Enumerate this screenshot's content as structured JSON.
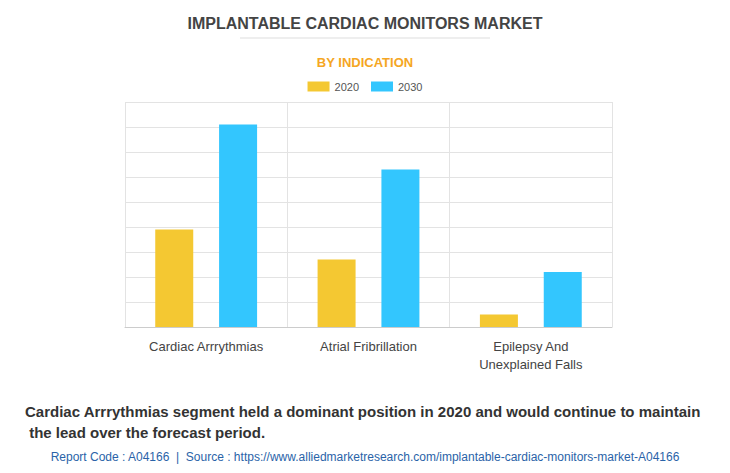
{
  "chart_data": {
    "type": "bar",
    "title": "IMPLANTABLE CARDIAC MONITORS MARKET",
    "subtitle": "BY INDICATION",
    "annotations": [
      "Cardiac Arrrythmias segment held a dominant position in 2020 and would continue to maintain the lead over the forecast period.",
      "Report Code : A04166  |  Source : https://www.alliedmarketresearch.com/implantable-cardiac-monitors-market-A04166"
    ],
    "categories": [
      "Cardiac Arrrythmias",
      "Atrial Fribrillation",
      "Epilepsy And\nUnexplained Falls"
    ],
    "series": [
      {
        "name": "2020",
        "color": "#f4c832",
        "values": [
          3.9,
          2.7,
          0.5
        ]
      },
      {
        "name": "2030",
        "color": "#33c6fe",
        "values": [
          8.1,
          6.3,
          2.2
        ]
      }
    ],
    "ylim": [
      0,
      9
    ],
    "yticks": [
      0,
      1,
      2,
      3,
      4,
      5,
      6,
      7,
      8,
      9
    ],
    "tick_labels": "x",
    "grid": true,
    "legend": "top",
    "data_labels": false
  }
}
